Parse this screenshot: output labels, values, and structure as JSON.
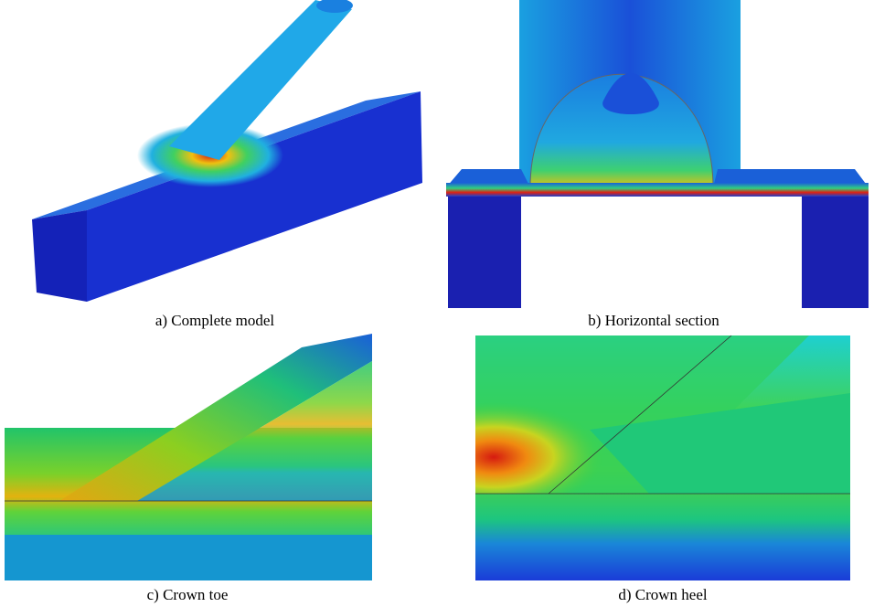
{
  "panels": [
    {
      "caption": "a) Complete model"
    },
    {
      "caption": "b) Horizontal section"
    },
    {
      "caption": "c) Crown toe"
    },
    {
      "caption": "d) Crown heel"
    }
  ]
}
